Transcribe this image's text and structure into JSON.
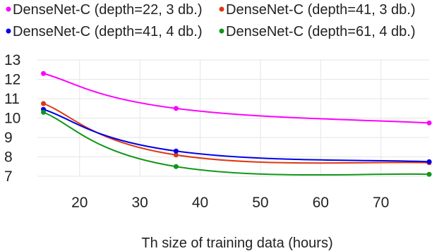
{
  "chart_data": {
    "type": "line",
    "title": "",
    "xlabel": "Th size of training data (hours)",
    "ylabel": "",
    "xlim": [
      13,
      78
    ],
    "ylim": [
      7,
      13
    ],
    "xticks": [
      20,
      30,
      40,
      50,
      60,
      70
    ],
    "yticks": [
      7,
      8,
      9,
      10,
      11,
      12,
      13
    ],
    "grid": true,
    "legend_position": "top",
    "x": [
      14,
      36,
      78
    ],
    "series": [
      {
        "name": "DenseNet-C (depth=22, 3 db.)",
        "color": "#ff00ff",
        "values": [
          12.3,
          10.5,
          9.75
        ]
      },
      {
        "name": "DenseNet-C (depth=41, 3 db.)",
        "color": "#dc3912",
        "values": [
          10.75,
          8.1,
          7.7
        ]
      },
      {
        "name": "DenseNet-C (depth=41, 4 db.)",
        "color": "#0000ee",
        "values": [
          10.45,
          8.3,
          7.75
        ]
      },
      {
        "name": "DenseNet-C (depth=61, 4 db.)",
        "color": "#109618",
        "values": [
          10.3,
          7.5,
          7.1
        ]
      }
    ]
  }
}
